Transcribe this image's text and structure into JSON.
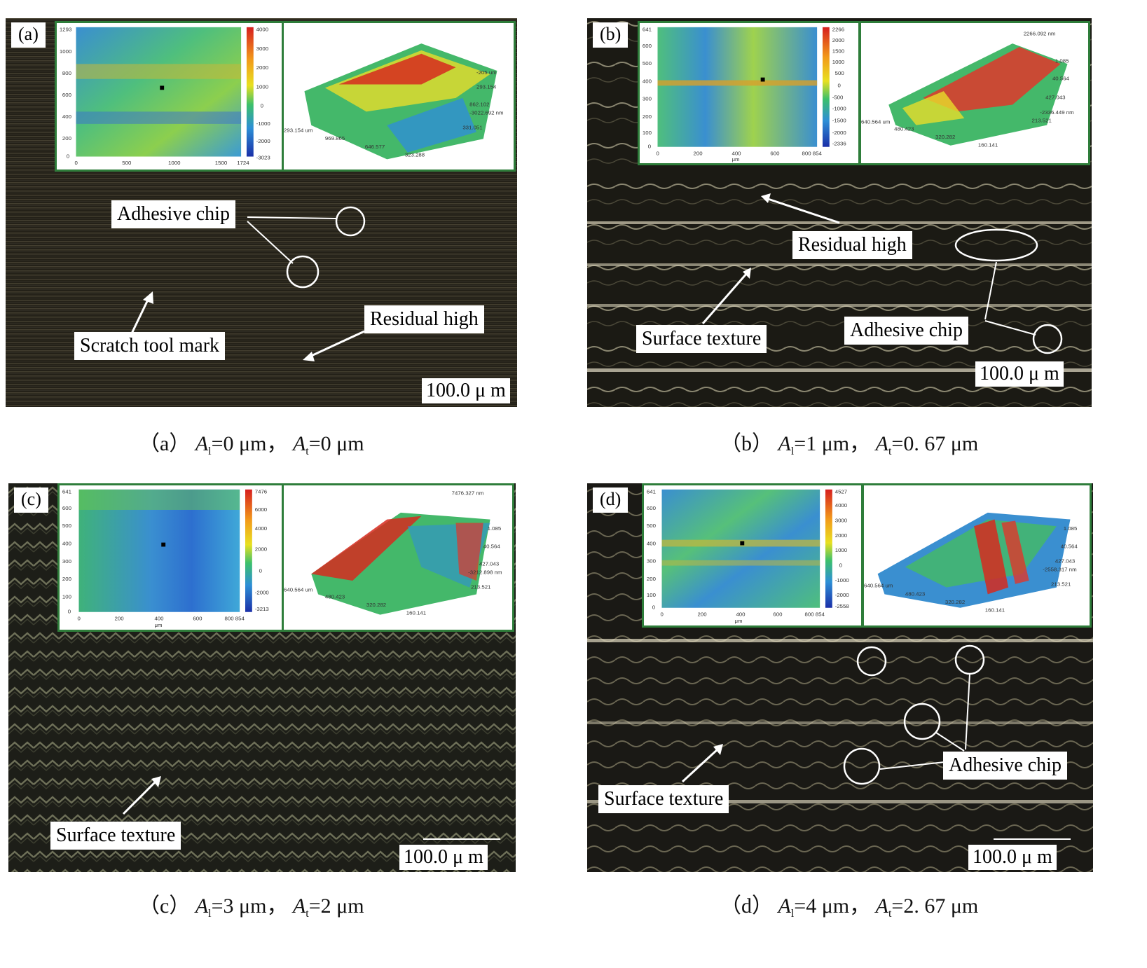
{
  "panels": [
    {
      "label": "(a)",
      "callouts": {
        "adhesive": "Adhesive chip",
        "scratch": "Scratch tool mark",
        "residual": "Residual high"
      },
      "scale": "100.0 μ m",
      "caption": {
        "prefix": "（a）",
        "a1": "=0 μm",
        "sep": "，",
        "at": "=0 μm"
      },
      "inset2d": {
        "ymax": "1293",
        "yticks": [
          "1200",
          "1000",
          "800",
          "600",
          "400",
          "200",
          "0"
        ],
        "xticks": [
          "0",
          "500",
          "1000",
          "1500",
          "1724"
        ],
        "cticks": [
          "4000",
          "3000",
          "2000",
          "1000",
          "0",
          "-1000",
          "-2000",
          "-3023"
        ],
        "unit": "μm"
      },
      "inset3d": {
        "labels": [
          "-205 um",
          "293.154",
          "862.102",
          "-3022.692 nm",
          "331.051",
          "293.154 um",
          "969.865",
          "646.577",
          "323.288"
        ]
      }
    },
    {
      "label": "(b)",
      "callouts": {
        "residual": "Residual high",
        "surface": "Surface texture",
        "adhesive": "Adhesive chip"
      },
      "scale": "100.0 μ m",
      "caption": {
        "prefix": "（b）",
        "a1": "=1 μm",
        "sep": "，",
        "at": "=0. 67 μm"
      },
      "inset2d": {
        "ymax": "641",
        "yticks": [
          "600",
          "500",
          "400",
          "300",
          "200",
          "100",
          "0"
        ],
        "xticks": [
          "0",
          "200",
          "400",
          "600",
          "800 854"
        ],
        "cticks": [
          "2266",
          "2000",
          "1500",
          "1000",
          "500",
          "0",
          "-500",
          "-1000",
          "-1500",
          "-2000",
          "-2336"
        ],
        "unit": "μm"
      },
      "inset3d": {
        "labels": [
          "2266.092 nm",
          "1.085",
          "40.564",
          "427.043",
          "-2336.449 nm",
          "213.521",
          "640.564 um",
          "480.423",
          "320.282",
          "160.141"
        ]
      }
    },
    {
      "label": "(c)",
      "callouts": {
        "surface": "Surface texture"
      },
      "scale": "100.0 μ m",
      "caption": {
        "prefix": "（c）",
        "a1": "=3 μm",
        "sep": "，",
        "at": "=2 μm"
      },
      "inset2d": {
        "ymax": "641",
        "yticks": [
          "600",
          "500",
          "400",
          "300",
          "200",
          "100",
          "0"
        ],
        "xticks": [
          "0",
          "200",
          "400",
          "600",
          "800 854"
        ],
        "cticks": [
          "7476",
          "6000",
          "4000",
          "2000",
          "0",
          "-2000",
          "-3213"
        ],
        "unit": "μm"
      },
      "inset3d": {
        "labels": [
          "7476.327 nm",
          "1.085",
          "40.564",
          "427.043",
          "-3212.898 nm",
          "213.521",
          "640.564 um",
          "480.423",
          "320.282",
          "160.141"
        ]
      }
    },
    {
      "label": "(d)",
      "callouts": {
        "surface": "Surface texture",
        "adhesive": "Adhesive chip"
      },
      "scale": "100.0 μ m",
      "caption": {
        "prefix": "（d）",
        "a1": "=4 μm",
        "sep": "，",
        "at": "=2. 67 μm"
      },
      "inset2d": {
        "ymax": "641",
        "yticks": [
          "600",
          "500",
          "400",
          "300",
          "200",
          "100",
          "0"
        ],
        "xticks": [
          "0",
          "200",
          "400",
          "600",
          "800 854"
        ],
        "cticks": [
          "4527",
          "4000",
          "3000",
          "2000",
          "1000",
          "0",
          "-1000",
          "-2000",
          "-2558"
        ],
        "unit": "μm"
      },
      "inset3d": {
        "labels": [
          "1.085",
          "40.564",
          "427.043",
          "-2558.317 nm",
          "213.521",
          "640.564 um",
          "480.423",
          "320.282",
          "160.141"
        ]
      }
    }
  ],
  "symbols": {
    "A": "A",
    "sub_l": "l",
    "sub_t": "t"
  },
  "colors": {
    "inset_border": "#2e7d3a",
    "panel_bg": "#141310"
  }
}
